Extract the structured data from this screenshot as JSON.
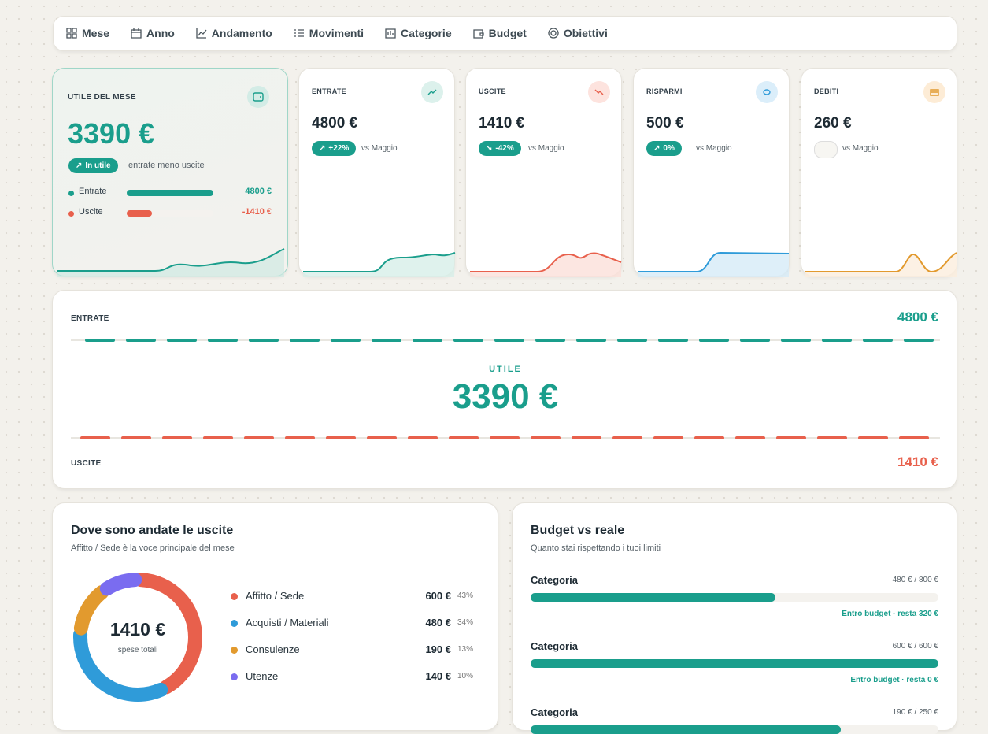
{
  "nav": [
    "Mese",
    "Anno",
    "Andamento",
    "Movimenti",
    "Categorie",
    "Budget",
    "Obiettivi"
  ],
  "summary": {
    "title": "UTILE DEL MESE",
    "value": "3390 €",
    "badge": "In utile",
    "note": "entrate meno uscite",
    "rows": [
      {
        "label": "Entrate",
        "value": 4800,
        "value_label": "4800 €",
        "color": "#1a9e8c"
      },
      {
        "label": "Uscite",
        "value": -1410,
        "value_label": "-1410 €",
        "color": "#e8604c"
      }
    ]
  },
  "kpis": [
    {
      "title": "ENTRATE",
      "value": "4800 €",
      "change": "+22%",
      "compare": "vs Maggio"
    },
    {
      "title": "USCITE",
      "value": "1410 €",
      "change": "-42%",
      "compare": "vs Maggio"
    },
    {
      "title": "RISPARMI",
      "value": "500 €",
      "change": "0%",
      "compare": "vs Maggio"
    },
    {
      "title": "DEBITI",
      "value": "260 €",
      "change": "—",
      "compare": "vs Maggio"
    }
  ],
  "flow": {
    "income_label": "ENTRATE",
    "income": "4800 €",
    "center_label": "UTILE",
    "center": "3390 €",
    "expense_label": "USCITE",
    "expense": "1410 €"
  },
  "expenses": {
    "title": "Dove sono andate le uscite",
    "subtitle": "Affitto / Sede è la voce principale del mese",
    "total": "1410 €",
    "total_label": "spese totali",
    "items": [
      {
        "name": "Affitto / Sede",
        "value": 600,
        "value_label": "600 €",
        "share": "43%",
        "color": "#e8604c"
      },
      {
        "name": "Acquisti / Materiali",
        "value": 480,
        "value_label": "480 €",
        "share": "34%",
        "color": "#2f9bd9"
      },
      {
        "name": "Consulenze",
        "value": 190,
        "value_label": "190 €",
        "share": "13%",
        "color": "#e29a2e"
      },
      {
        "name": "Utenze",
        "value": 140,
        "value_label": "140 €",
        "share": "10%",
        "color": "#7a6cf0"
      }
    ]
  },
  "budget": {
    "title": "Budget vs reale",
    "subtitle": "Quanto stai rispettando i tuoi limiti",
    "items": [
      {
        "name": "Categoria",
        "spent": 480,
        "limit": 800,
        "amount": "480 € / 800 €",
        "status": "Entro budget · resta 320 €"
      },
      {
        "name": "Categoria",
        "spent": 600,
        "limit": 600,
        "amount": "600 € / 600 €",
        "status": "Entro budget · resta 0 €"
      },
      {
        "name": "Categoria",
        "spent": 190,
        "limit": 250,
        "amount": "190 € / 250 €"
      }
    ]
  }
}
